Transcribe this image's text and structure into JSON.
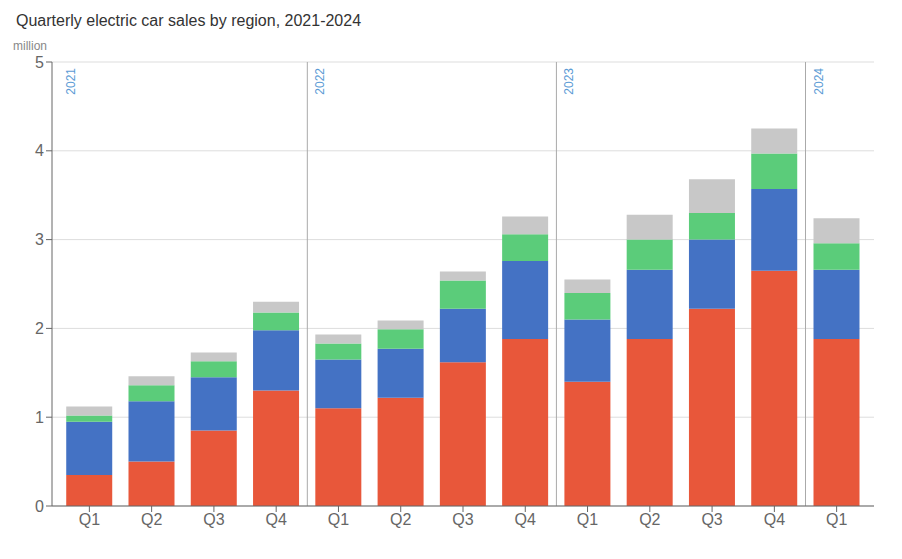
{
  "chart_data": {
    "type": "bar",
    "stacked": true,
    "title": "Quarterly electric car sales by region, 2021-2024",
    "ylabel": "million",
    "categories": [
      "Q1",
      "Q2",
      "Q3",
      "Q4",
      "Q1",
      "Q2",
      "Q3",
      "Q4",
      "Q1",
      "Q2",
      "Q3",
      "Q4",
      "Q1"
    ],
    "series": [
      {
        "color": "#E8573A",
        "values": [
          0.35,
          0.5,
          0.85,
          1.3,
          1.1,
          1.22,
          1.62,
          1.88,
          1.4,
          1.88,
          2.22,
          2.65,
          1.88
        ]
      },
      {
        "color": "#4472C4",
        "values": [
          0.6,
          0.68,
          0.6,
          0.68,
          0.55,
          0.55,
          0.6,
          0.88,
          0.7,
          0.78,
          0.78,
          0.92,
          0.78
        ]
      },
      {
        "color": "#5BCC7A",
        "values": [
          0.07,
          0.18,
          0.18,
          0.2,
          0.18,
          0.22,
          0.32,
          0.3,
          0.3,
          0.34,
          0.3,
          0.4,
          0.3
        ]
      },
      {
        "color": "#C8C8C8",
        "values": [
          0.1,
          0.1,
          0.1,
          0.12,
          0.1,
          0.1,
          0.1,
          0.2,
          0.15,
          0.28,
          0.38,
          0.28,
          0.28
        ]
      }
    ],
    "ylim": [
      0,
      5
    ],
    "yticks": [
      0,
      1,
      2,
      3,
      4,
      5
    ],
    "grid": true,
    "annotations": [
      {
        "text": "2021",
        "x": 0
      },
      {
        "text": "2022",
        "x": 4
      },
      {
        "text": "2023",
        "x": 8
      },
      {
        "text": "2024",
        "x": 12
      }
    ]
  }
}
